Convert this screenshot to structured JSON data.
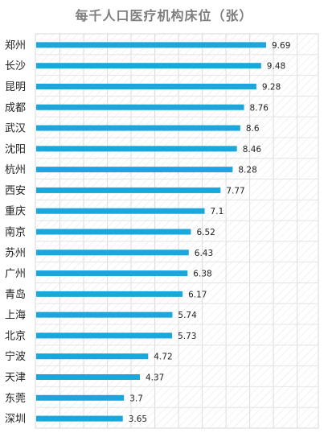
{
  "chart_data": {
    "type": "bar",
    "orientation": "horizontal",
    "title": "每千人口医疗机构床位（张）",
    "categories": [
      "郑州",
      "长沙",
      "昆明",
      "成都",
      "武汉",
      "沈阳",
      "杭州",
      "西安",
      "重庆",
      "南京",
      "苏州",
      "广州",
      "青岛",
      "上海",
      "北京",
      "宁波",
      "天津",
      "东莞",
      "深圳"
    ],
    "values": [
      9.69,
      9.48,
      9.28,
      8.76,
      8.6,
      8.46,
      8.28,
      7.77,
      7.1,
      6.52,
      6.43,
      6.38,
      6.17,
      5.74,
      5.73,
      4.72,
      4.37,
      3.7,
      3.65
    ],
    "value_labels": [
      "9.69",
      "9.48",
      "9.28",
      "8.76",
      "8.6",
      "8.46",
      "8.28",
      "7.77",
      "7.1",
      "6.52",
      "6.43",
      "6.38",
      "6.17",
      "5.74",
      "5.73",
      "4.72",
      "4.37",
      "3.7",
      "3.65"
    ],
    "xlim": [
      0,
      12
    ],
    "bar_color": "#1ba6dc",
    "grid": true,
    "legend": "none"
  }
}
